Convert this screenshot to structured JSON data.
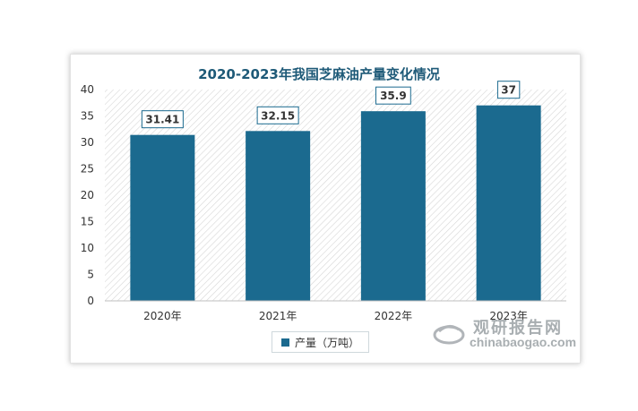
{
  "chart_data": {
    "type": "bar",
    "title": "2020-2023年我国芝麻油产量变化情况",
    "categories": [
      "2020年",
      "2021年",
      "2022年",
      "2023年"
    ],
    "series": [
      {
        "name": "产量（万吨）",
        "values": [
          31.41,
          32.15,
          35.9,
          37
        ]
      }
    ],
    "data_labels": [
      "31.41",
      "32.15",
      "35.9",
      "37"
    ],
    "ylim": [
      0,
      40
    ],
    "yticks": [
      0,
      5,
      10,
      15,
      20,
      25,
      30,
      35,
      40
    ],
    "xlabel": "",
    "ylabel": "",
    "legend_position": "bottom",
    "grid": false,
    "bar_color": "#1b6a8f"
  },
  "watermark": {
    "name_cn": "观研报告网",
    "domain": "chinabaogao.com"
  }
}
